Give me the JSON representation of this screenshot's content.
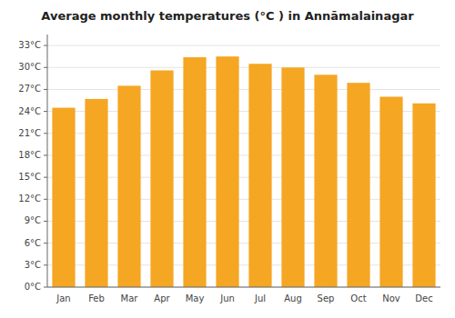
{
  "chart_data": {
    "type": "bar",
    "title": "Average monthly temperatures (°C ) in Annāmalainagar",
    "categories": [
      "Jan",
      "Feb",
      "Mar",
      "Apr",
      "May",
      "Jun",
      "Jul",
      "Aug",
      "Sep",
      "Oct",
      "Nov",
      "Dec"
    ],
    "values": [
      24.5,
      25.7,
      27.5,
      29.6,
      31.4,
      31.5,
      30.5,
      30.0,
      29.0,
      27.9,
      26.0,
      25.1
    ],
    "color": "#F5A623",
    "ylim": [
      0,
      34.5
    ],
    "yticks": [
      {
        "value": 0,
        "label": "0°C"
      },
      {
        "value": 3,
        "label": "3°C"
      },
      {
        "value": 6,
        "label": "6°C"
      },
      {
        "value": 9,
        "label": "9°C"
      },
      {
        "value": 12,
        "label": "12°C"
      },
      {
        "value": 15,
        "label": "15°C"
      },
      {
        "value": 18,
        "label": "18°C"
      },
      {
        "value": 21,
        "label": "21°C"
      },
      {
        "value": 24,
        "label": "24°C"
      },
      {
        "value": 27,
        "label": "27°C"
      },
      {
        "value": 30,
        "label": "30°C"
      },
      {
        "value": 33,
        "label": "33°C"
      }
    ],
    "grid": true
  }
}
